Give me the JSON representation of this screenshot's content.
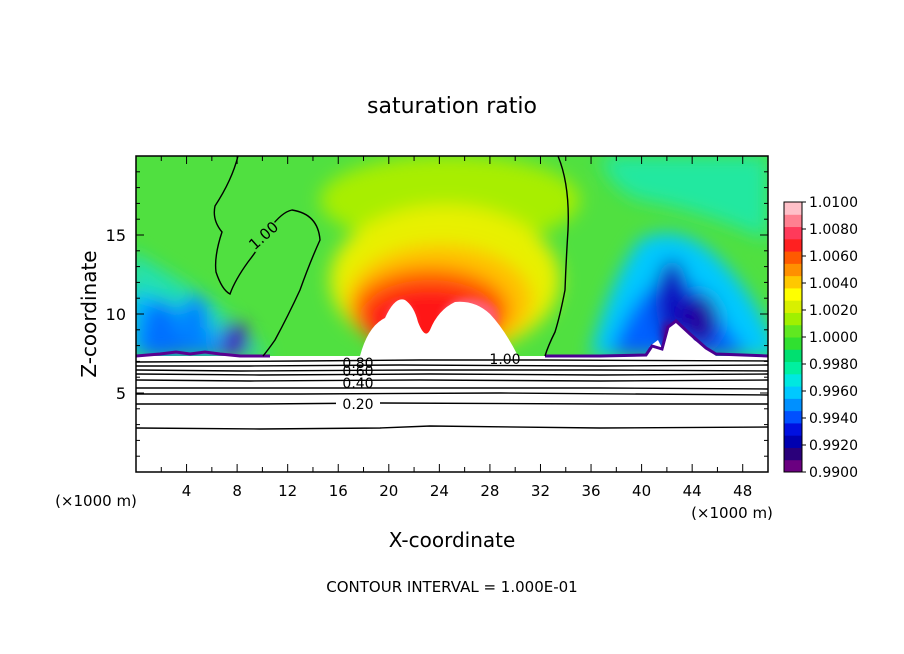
{
  "chart_data": {
    "type": "heatmap",
    "title": "saturation ratio",
    "xlabel": "X-coordinate",
    "ylabel": "Z-coordinate",
    "x_units": "(×1000 m)",
    "y_units": "(×1000 m)",
    "xlim": [
      0,
      50
    ],
    "ylim": [
      0,
      20
    ],
    "x_ticks": [
      "4",
      "8",
      "12",
      "16",
      "20",
      "24",
      "28",
      "32",
      "36",
      "40",
      "44",
      "48"
    ],
    "y_ticks": [
      "5",
      "10",
      "15"
    ],
    "colorbar": {
      "min": 0.99,
      "max": 1.01,
      "labels": [
        "1.0100",
        "1.0080",
        "1.0060",
        "1.0040",
        "1.0020",
        "1.0000",
        "0.9980",
        "0.9960",
        "0.9940",
        "0.9920",
        "0.9900"
      ],
      "colors": [
        "#6a0080",
        "#2a007a",
        "#0000b0",
        "#0010e0",
        "#0050ff",
        "#0090ff",
        "#00c8ff",
        "#00e8e0",
        "#00f0a0",
        "#00e070",
        "#30e030",
        "#60e820",
        "#a0f000",
        "#d8f000",
        "#ffff00",
        "#ffc800",
        "#ff9000",
        "#ff5a00",
        "#ff2020",
        "#ff3a5a",
        "#ff8090",
        "#ffc0c8"
      ]
    },
    "contour_lines": [
      "1.00",
      "1.00",
      "0.80",
      "0.60",
      "0.40",
      "0.20"
    ],
    "footer": "CONTOUR INTERVAL = 1.000E-01"
  }
}
